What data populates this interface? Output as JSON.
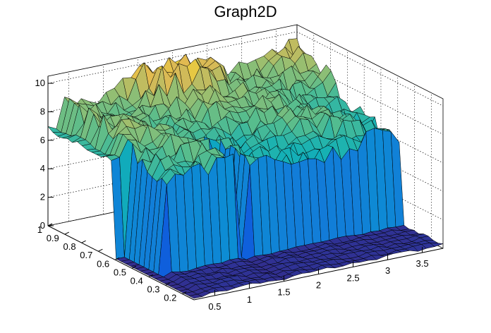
{
  "chart_data": {
    "type": "surface",
    "title": "Graph2D",
    "xlabel": "",
    "ylabel": "",
    "zlabel": "",
    "x_range": [
      0.2,
      3.8
    ],
    "y_range": [
      0.13,
      1.0
    ],
    "z_range": [
      0,
      10.5
    ],
    "x_ticks": [
      "0.5",
      "1",
      "1.5",
      "2",
      "2.5",
      "3",
      "3.5"
    ],
    "x_tick_values": [
      0.5,
      1.0,
      1.5,
      2.0,
      2.5,
      3.0,
      3.5
    ],
    "y_ticks": [
      "0.2",
      "0.3",
      "0.4",
      "0.5",
      "0.6",
      "0.7",
      "0.8",
      "0.9",
      "1"
    ],
    "y_tick_values": [
      0.2,
      0.3,
      0.4,
      0.5,
      0.6,
      0.7,
      0.8,
      0.9,
      1.0
    ],
    "z_ticks": [
      "0",
      "2",
      "4",
      "6",
      "8",
      "10"
    ],
    "z_tick_values": [
      0,
      2,
      4,
      6,
      8,
      10
    ],
    "grid": true,
    "colormap": "viridis",
    "nx": 30,
    "ny": 30,
    "surface_description_values": {
      "z_min": 0,
      "z_max": 10.3,
      "front_level": 6.3,
      "back_level": 8.5
    }
  }
}
